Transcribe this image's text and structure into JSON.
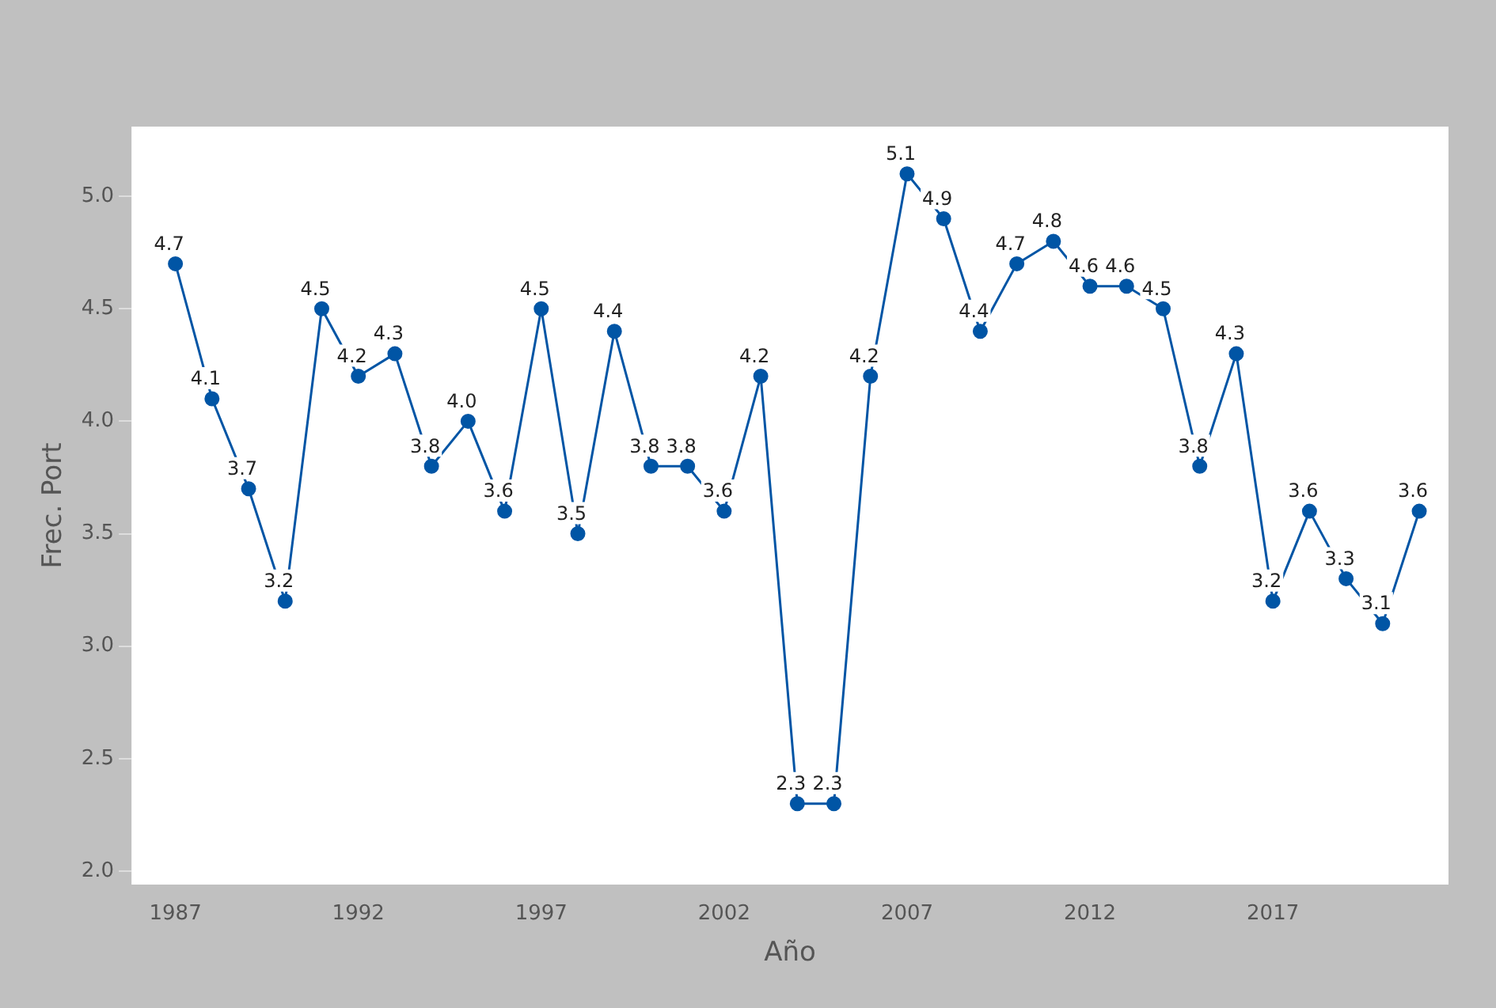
{
  "chart_data": {
    "type": "line",
    "xlabel": "Año",
    "ylabel": "Frec. Port",
    "x": [
      1987,
      1988,
      1989,
      1990,
      1991,
      1992,
      1993,
      1994,
      1995,
      1996,
      1997,
      1998,
      1999,
      2000,
      2001,
      2002,
      2003,
      2004,
      2005,
      2006,
      2007,
      2008,
      2009,
      2010,
      2011,
      2012,
      2013,
      2014,
      2015,
      2016,
      2017,
      2018,
      2019,
      2020,
      2021
    ],
    "series": [
      {
        "color": "#0055a5",
        "values": [
          4.7,
          4.1,
          3.7,
          3.2,
          4.5,
          4.2,
          4.3,
          3.8,
          4.0,
          3.6,
          4.5,
          3.5,
          4.4,
          3.8,
          3.8,
          3.6,
          4.2,
          2.3,
          2.3,
          4.2,
          5.1,
          4.9,
          4.4,
          4.7,
          4.8,
          4.6,
          4.6,
          4.5,
          3.8,
          4.3,
          3.2,
          3.6,
          3.3,
          3.1,
          3.6
        ],
        "value_labels": [
          "4.7",
          "4.1",
          "3.7",
          "3.2",
          "4.5",
          "4.2",
          "4.3",
          "3.8",
          "4.0",
          "3.6",
          "4.5",
          "3.5",
          "4.4",
          "3.8",
          "3.8",
          "3.6",
          "4.2",
          "2.3",
          "2.3",
          "4.2",
          "5.1",
          "4.9",
          "4.4",
          "4.7",
          "4.8",
          "4.6",
          "4.6",
          "4.5",
          "3.8",
          "4.3",
          "3.2",
          "3.6",
          "3.3",
          "3.1",
          "3.6"
        ]
      }
    ],
    "xlim": [
      1985.8,
      2021.8
    ],
    "xticks": [
      1987,
      1992,
      1997,
      2002,
      2007,
      2012,
      2017
    ],
    "ylim": [
      1.94,
      5.31
    ],
    "yticks": [
      {
        "value": 2,
        "label": "2.0"
      },
      {
        "value": 2.5,
        "label": "2.5"
      },
      {
        "value": 3,
        "label": "3.0"
      },
      {
        "value": 3.5,
        "label": "3.5"
      },
      {
        "value": 4,
        "label": "4.0"
      },
      {
        "value": 4.5,
        "label": "4.5"
      },
      {
        "value": 5,
        "label": "5.0"
      }
    ],
    "grid": false,
    "legend": false,
    "marker": "circle",
    "line_style": "solid"
  }
}
